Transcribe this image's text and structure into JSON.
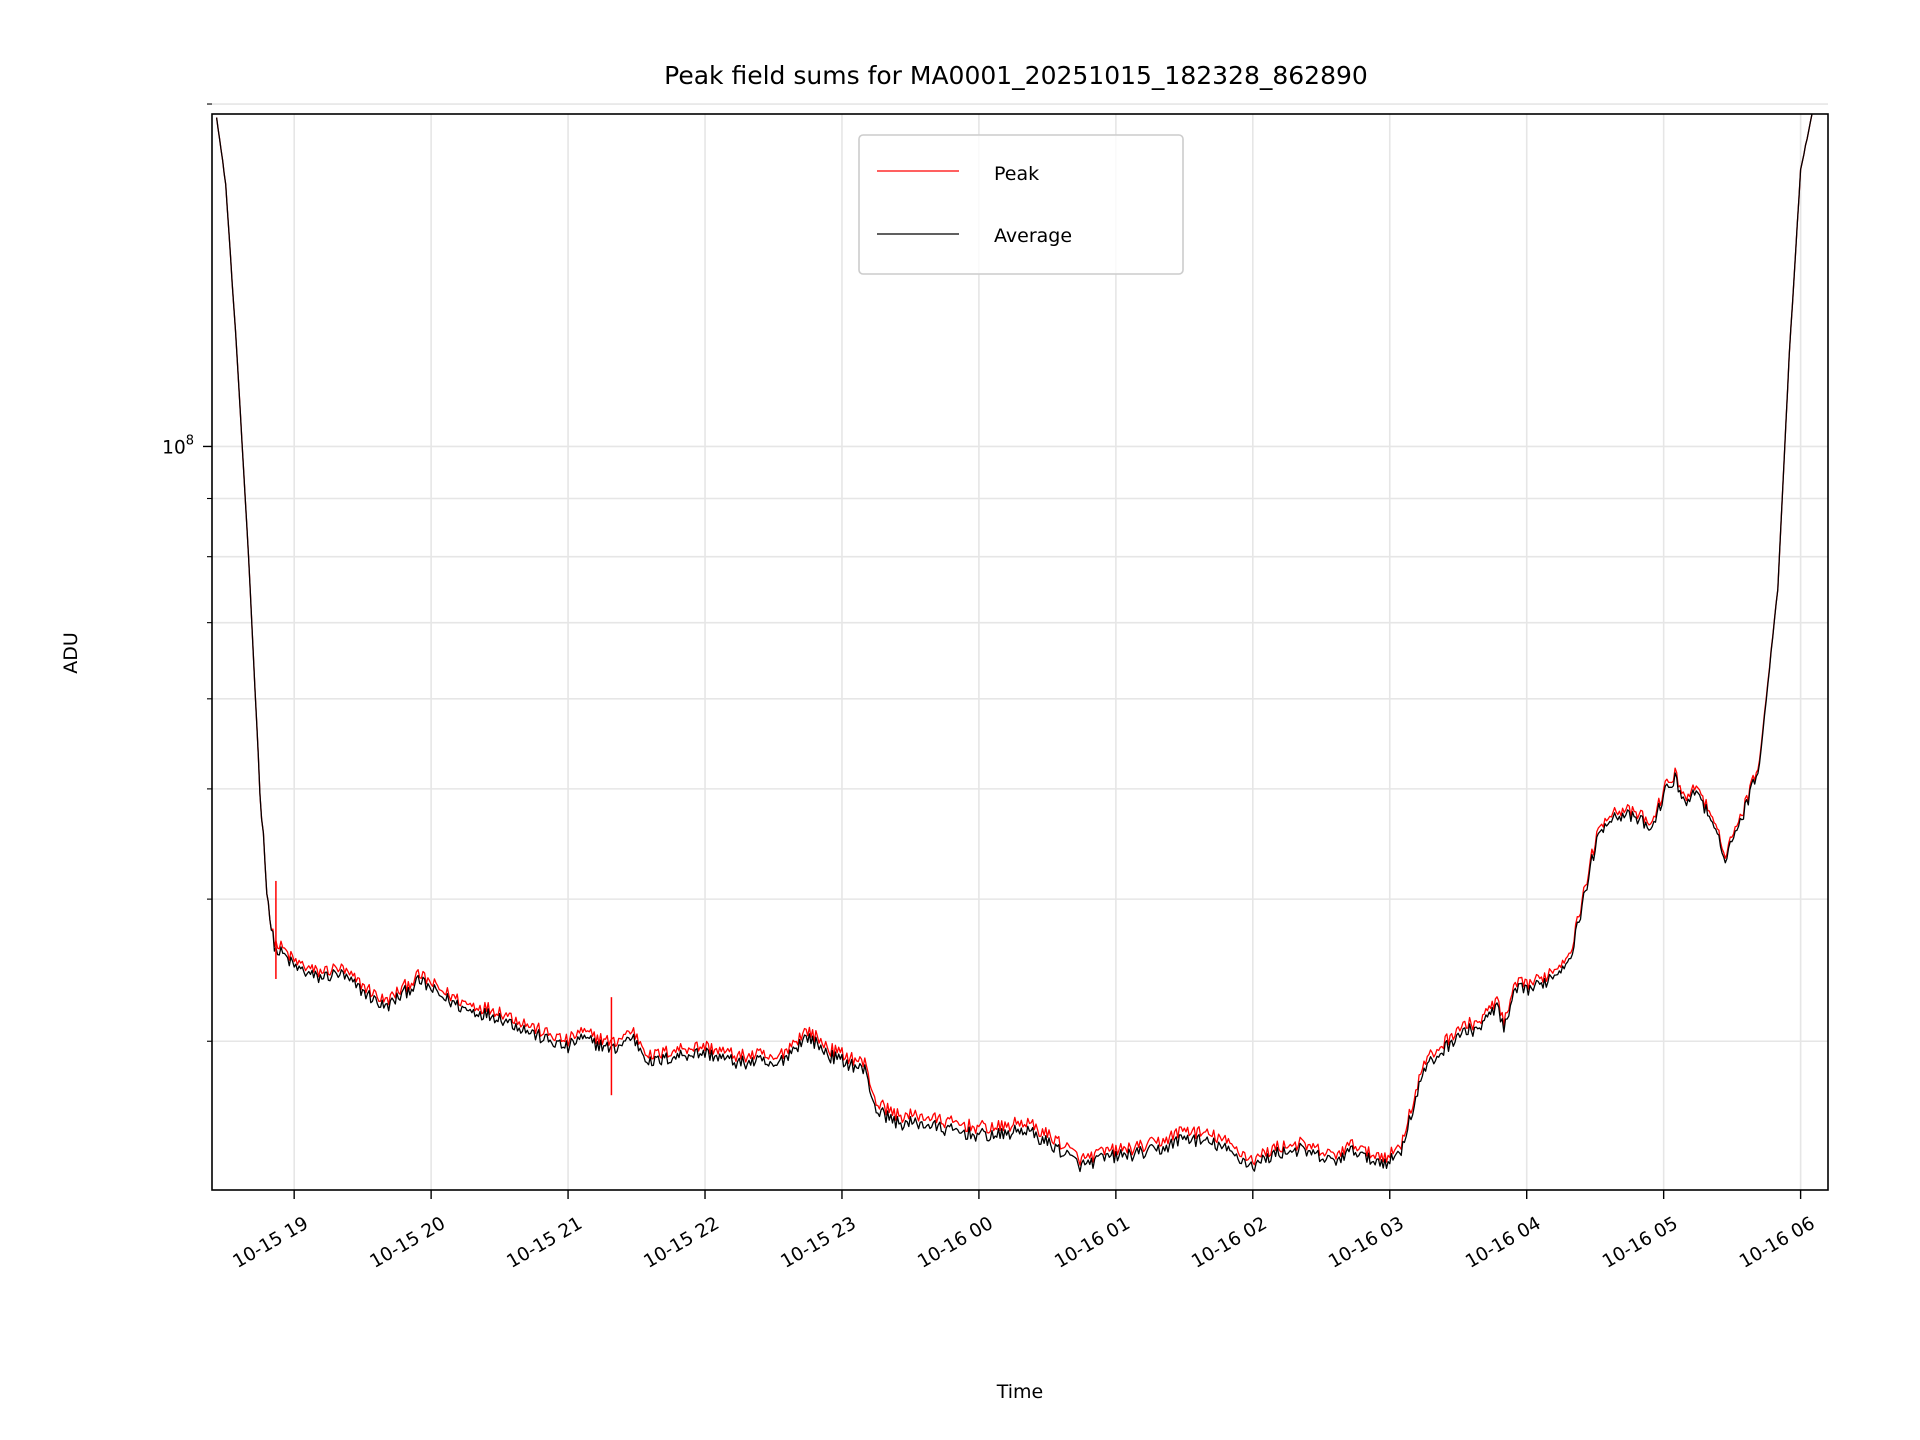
{
  "chart_data": {
    "type": "line",
    "title": "Peak field sums for MA0001_20251015_182328_862890",
    "xlabel": "Time",
    "ylabel": "ADU",
    "y_scale": "log",
    "ylim": [
      22200000,
      196000000
    ],
    "xlim": [
      "2025-10-15 18:24",
      "2025-10-16 06:12"
    ],
    "x_tick_labels": [
      "10-15 19",
      "10-15 20",
      "10-15 21",
      "10-15 22",
      "10-15 23",
      "10-16 00",
      "10-16 01",
      "10-16 02",
      "10-16 03",
      "10-16 04",
      "10-16 05",
      "10-16 06"
    ],
    "x_ticks": [
      "2025-10-15 19:00",
      "2025-10-15 20:00",
      "2025-10-15 21:00",
      "2025-10-15 22:00",
      "2025-10-15 23:00",
      "2025-10-16 00:00",
      "2025-10-16 01:00",
      "2025-10-16 02:00",
      "2025-10-16 03:00",
      "2025-10-16 04:00",
      "2025-10-16 05:00",
      "2025-10-16 06:00"
    ],
    "y_major_ticks": [
      {
        "value": 100000000,
        "base": "10",
        "exp": "8"
      }
    ],
    "y_minor_ticks": [
      30000000,
      40000000,
      50000000,
      60000000,
      70000000,
      80000000,
      90000000,
      200000000
    ],
    "grid": true,
    "legend_position": "upper center",
    "series": [
      {
        "name": "Peak",
        "color": "#ff0000",
        "x": [
          "2025-10-15 18:26",
          "2025-10-15 18:30",
          "2025-10-15 18:35",
          "2025-10-15 18:40",
          "2025-10-15 18:45",
          "2025-10-15 18:48",
          "2025-10-15 18:50",
          "2025-10-15 18:52",
          "2025-10-15 18:55",
          "2025-10-15 19:00",
          "2025-10-15 19:10",
          "2025-10-15 19:20",
          "2025-10-15 19:30",
          "2025-10-15 19:40",
          "2025-10-15 19:50",
          "2025-10-15 19:55",
          "2025-10-15 20:05",
          "2025-10-15 20:15",
          "2025-10-15 20:30",
          "2025-10-15 20:40",
          "2025-10-15 20:50",
          "2025-10-15 21:00",
          "2025-10-15 21:05",
          "2025-10-15 21:20",
          "2025-10-15 21:28",
          "2025-10-15 21:36",
          "2025-10-15 21:50",
          "2025-10-15 22:00",
          "2025-10-15 22:10",
          "2025-10-15 22:15",
          "2025-10-15 22:25",
          "2025-10-15 22:30",
          "2025-10-15 22:40",
          "2025-10-15 22:45",
          "2025-10-15 22:55",
          "2025-10-15 23:10",
          "2025-10-15 23:15",
          "2025-10-15 23:25",
          "2025-10-15 23:35",
          "2025-10-15 23:45",
          "2025-10-16 00:00",
          "2025-10-16 00:10",
          "2025-10-16 00:20",
          "2025-10-16 00:35",
          "2025-10-16 00:45",
          "2025-10-16 00:55",
          "2025-10-16 01:10",
          "2025-10-16 01:20",
          "2025-10-16 01:30",
          "2025-10-16 01:45",
          "2025-10-16 02:00",
          "2025-10-16 02:10",
          "2025-10-16 02:20",
          "2025-10-16 02:35",
          "2025-10-16 02:45",
          "2025-10-16 02:50",
          "2025-10-16 03:00",
          "2025-10-16 03:05",
          "2025-10-16 03:15",
          "2025-10-16 03:30",
          "2025-10-16 03:40",
          "2025-10-16 03:47",
          "2025-10-16 03:50",
          "2025-10-16 03:55",
          "2025-10-16 04:05",
          "2025-10-16 04:15",
          "2025-10-16 04:20",
          "2025-10-16 04:30",
          "2025-10-16 04:35",
          "2025-10-16 04:42",
          "2025-10-16 04:50",
          "2025-10-16 04:55",
          "2025-10-16 05:00",
          "2025-10-16 05:05",
          "2025-10-16 05:10",
          "2025-10-16 05:15",
          "2025-10-16 05:20",
          "2025-10-16 05:27",
          "2025-10-16 05:35",
          "2025-10-16 05:42",
          "2025-10-16 05:50",
          "2025-10-16 05:55",
          "2025-10-16 06:00",
          "2025-10-16 06:05"
        ],
        "y": [
          195000000,
          170000000,
          120000000,
          80000000,
          50000000,
          41000000,
          37500000,
          36500000,
          36200000,
          35300000,
          34500000,
          34800000,
          33600000,
          32500000,
          33700000,
          34300000,
          33200000,
          32400000,
          31900000,
          31200000,
          30500000,
          30000000,
          30600000,
          29900000,
          30700000,
          29100000,
          29600000,
          29700000,
          29300000,
          29100000,
          29200000,
          28800000,
          30100000,
          30700000,
          29500000,
          28700000,
          26500000,
          25800000,
          25800000,
          25500000,
          25200000,
          25200000,
          25500000,
          24500000,
          23600000,
          24000000,
          24200000,
          24500000,
          25100000,
          24700000,
          23600000,
          24200000,
          24400000,
          23800000,
          24400000,
          23900000,
          23800000,
          24400000,
          28700000,
          30800000,
          31300000,
          32700000,
          31000000,
          33600000,
          33900000,
          35100000,
          36500000,
          45000000,
          47500000,
          48000000,
          47300000,
          46500000,
          50000000,
          51500000,
          49000000,
          50500000,
          47500000,
          44000000,
          48000000,
          53000000,
          75000000,
          120000000,
          175000000,
          196000000
        ]
      },
      {
        "name": "Average",
        "color": "#000000",
        "x": [
          "2025-10-15 18:26",
          "2025-10-15 18:30",
          "2025-10-15 18:35",
          "2025-10-15 18:40",
          "2025-10-15 18:45",
          "2025-10-15 18:48",
          "2025-10-15 18:50",
          "2025-10-15 18:52",
          "2025-10-15 18:55",
          "2025-10-15 19:00",
          "2025-10-15 19:10",
          "2025-10-15 19:20",
          "2025-10-15 19:30",
          "2025-10-15 19:40",
          "2025-10-15 19:50",
          "2025-10-15 19:55",
          "2025-10-15 20:05",
          "2025-10-15 20:15",
          "2025-10-15 20:30",
          "2025-10-15 20:40",
          "2025-10-15 20:50",
          "2025-10-15 21:00",
          "2025-10-15 21:05",
          "2025-10-15 21:20",
          "2025-10-15 21:28",
          "2025-10-15 21:36",
          "2025-10-15 21:50",
          "2025-10-15 22:00",
          "2025-10-15 22:10",
          "2025-10-15 22:15",
          "2025-10-15 22:25",
          "2025-10-15 22:30",
          "2025-10-15 22:40",
          "2025-10-15 22:45",
          "2025-10-15 22:55",
          "2025-10-15 23:10",
          "2025-10-15 23:15",
          "2025-10-15 23:25",
          "2025-10-15 23:35",
          "2025-10-15 23:45",
          "2025-10-16 00:00",
          "2025-10-16 00:10",
          "2025-10-16 00:20",
          "2025-10-16 00:35",
          "2025-10-16 00:45",
          "2025-10-16 00:55",
          "2025-10-16 01:10",
          "2025-10-16 01:20",
          "2025-10-16 01:30",
          "2025-10-16 01:45",
          "2025-10-16 02:00",
          "2025-10-16 02:10",
          "2025-10-16 02:20",
          "2025-10-16 02:35",
          "2025-10-16 02:45",
          "2025-10-16 02:50",
          "2025-10-16 03:00",
          "2025-10-16 03:05",
          "2025-10-16 03:15",
          "2025-10-16 03:30",
          "2025-10-16 03:40",
          "2025-10-16 03:47",
          "2025-10-16 03:50",
          "2025-10-16 03:55",
          "2025-10-16 04:05",
          "2025-10-16 04:15",
          "2025-10-16 04:20",
          "2025-10-16 04:30",
          "2025-10-16 04:35",
          "2025-10-16 04:42",
          "2025-10-16 04:50",
          "2025-10-16 04:55",
          "2025-10-16 05:00",
          "2025-10-16 05:05",
          "2025-10-16 05:10",
          "2025-10-16 05:15",
          "2025-10-16 05:20",
          "2025-10-16 05:27",
          "2025-10-16 05:35",
          "2025-10-16 05:42",
          "2025-10-16 05:50",
          "2025-10-16 05:55",
          "2025-10-16 06:00",
          "2025-10-16 06:05"
        ],
        "y": [
          195000000,
          170000000,
          120000000,
          80000000,
          50000000,
          41000000,
          37500000,
          36000000,
          35800000,
          34900000,
          34100000,
          34400000,
          33200000,
          32100000,
          33300000,
          33900000,
          32800000,
          32000000,
          31500000,
          30800000,
          30100000,
          29600000,
          30200000,
          29500000,
          30300000,
          28700000,
          29200000,
          29300000,
          28900000,
          28700000,
          28800000,
          28400000,
          29700000,
          30300000,
          29100000,
          28300000,
          26100000,
          25400000,
          25400000,
          25100000,
          24800000,
          24800000,
          25100000,
          24100000,
          23300000,
          23700000,
          23900000,
          24100000,
          24700000,
          24300000,
          23300000,
          23900000,
          24100000,
          23500000,
          24100000,
          23600000,
          23500000,
          24100000,
          28300000,
          30400000,
          30900000,
          32300000,
          30600000,
          33200000,
          33500000,
          34700000,
          36100000,
          44500000,
          47000000,
          47500000,
          46800000,
          46000000,
          49500000,
          51000000,
          48500000,
          50000000,
          47000000,
          43600000,
          47600000,
          52600000,
          75000000,
          120000000,
          175000000,
          196000000
        ]
      }
    ],
    "spikes": [
      {
        "series": "Peak",
        "x": "2025-10-15 18:52",
        "y": 41500000
      },
      {
        "series": "Peak",
        "x": "2025-10-15 21:19",
        "y": 32800000
      }
    ]
  }
}
